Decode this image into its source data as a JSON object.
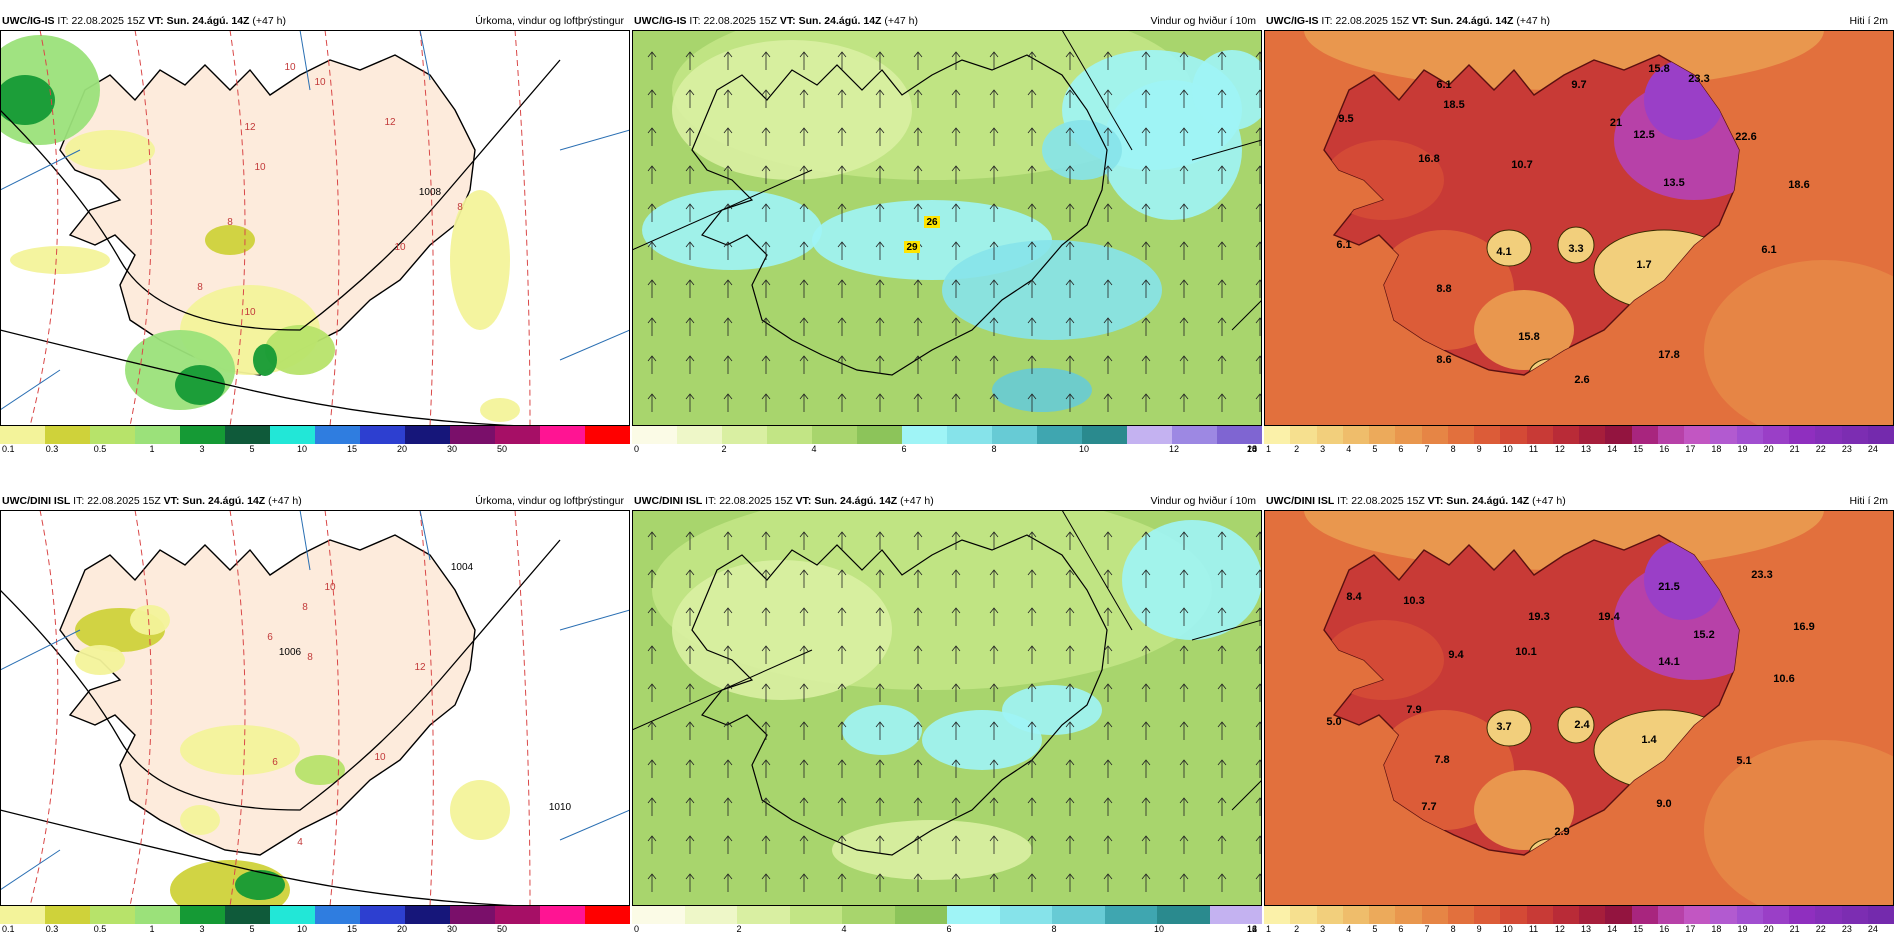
{
  "panels": [
    {
      "id": "p1",
      "model": "UWC/IG-IS",
      "it_label": "IT:",
      "it_value": "22.08.2025 15Z",
      "vt_label": "VT:",
      "vt_value": "Sun. 24.ágú. 14Z",
      "lead": "(+47 h)",
      "field": "Úrkoma, vindur og loftþrýstingur",
      "scale_colors": [
        "#f3f39a",
        "#cfd23a",
        "#b7e36a",
        "#9be17a",
        "#159a35",
        "#0f5a3a",
        "#22e7d7",
        "#2f7de0",
        "#2d3fd0",
        "#16167a",
        "#7a0f6a",
        "#a60f66",
        "#ff1493",
        "#ff0000"
      ],
      "scale_ticks": [
        "0.1",
        "0.3",
        "0.5",
        "1",
        "3",
        "5",
        "10",
        "15",
        "20",
        "30",
        "50"
      ],
      "labels": [
        "10",
        "10",
        "12",
        "12",
        "10",
        "8",
        "8",
        "10",
        "10",
        "8",
        "1008"
      ]
    },
    {
      "id": "p2",
      "model": "UWC/IG-IS",
      "it_label": "IT:",
      "it_value": "22.08.2025 15Z",
      "vt_label": "VT:",
      "vt_value": "Sun. 24.ágú. 14Z",
      "lead": "(+47 h)",
      "field": "Vindur og hviður í 10m",
      "scale_colors": [
        "#fbfbe6",
        "#eef7c8",
        "#d9efa2",
        "#c2e585",
        "#a8d56d",
        "#8cc45a",
        "#9ff4f6",
        "#86e3ea",
        "#67cbd5",
        "#3fa6b0",
        "#2a8a8e",
        "#c4b2f1",
        "#9d88e3",
        "#7f65d2"
      ],
      "scale_ticks": [
        "0",
        "2",
        "4",
        "6",
        "8",
        "10",
        "12",
        "14",
        "16",
        "18",
        "20"
      ],
      "labels": [
        "29",
        "26"
      ]
    },
    {
      "id": "p3",
      "model": "UWC/IG-IS",
      "it_label": "IT:",
      "it_value": "22.08.2025 15Z",
      "vt_label": "VT:",
      "vt_value": "Sun. 24.ágú. 14Z",
      "lead": "(+47 h)",
      "field": "Hiti í 2m",
      "scale_colors": [
        "#fbf1a9",
        "#f6e08f",
        "#f2cf7c",
        "#efbd6b",
        "#ecaa5b",
        "#e9974e",
        "#e68545",
        "#e2703d",
        "#dc5c38",
        "#d44a36",
        "#c83a36",
        "#b92b37",
        "#a61e3b",
        "#93143f",
        "#a8257e",
        "#b741a8",
        "#c256c2",
        "#b25ad0",
        "#a14fd0",
        "#9a3fc7",
        "#8f2fbf",
        "#842fb8",
        "#7c2db2",
        "#742aad"
      ],
      "scale_ticks": [
        "1",
        "2",
        "3",
        "4",
        "5",
        "6",
        "7",
        "8",
        "9",
        "10",
        "11",
        "12",
        "13",
        "14",
        "15",
        "16",
        "17",
        "18",
        "19",
        "20",
        "21",
        "22",
        "23",
        "24"
      ],
      "labels": [
        "15.8",
        "23.3",
        "9.7",
        "6.1",
        "9.5",
        "18.5",
        "21",
        "12.5",
        "22.6",
        "16.8",
        "10.7",
        "13.5",
        "18.6",
        "6.1",
        "4.1",
        "3.3",
        "1.7",
        "6.1",
        "8.8",
        "15.8",
        "8.6",
        "2.6",
        "17.8"
      ]
    },
    {
      "id": "p4",
      "model": "UWC/DINI ISL",
      "it_label": "IT:",
      "it_value": "22.08.2025 15Z",
      "vt_label": "VT:",
      "vt_value": "Sun. 24.ágú. 14Z",
      "lead": "(+47 h)",
      "field": "Úrkoma, vindur og loftþrýstingur",
      "scale_colors": [
        "#f3f39a",
        "#cfd23a",
        "#b7e36a",
        "#9be17a",
        "#159a35",
        "#0f5a3a",
        "#22e7d7",
        "#2f7de0",
        "#2d3fd0",
        "#16167a",
        "#7a0f6a",
        "#a60f66",
        "#ff1493",
        "#ff0000"
      ],
      "scale_ticks": [
        "0.1",
        "0.3",
        "0.5",
        "1",
        "3",
        "5",
        "10",
        "15",
        "20",
        "30",
        "50"
      ],
      "labels": [
        "1004",
        "10",
        "8",
        "6",
        "12",
        "1006",
        "8",
        "10",
        "6",
        "4",
        "1010"
      ]
    },
    {
      "id": "p5",
      "model": "UWC/DINI ISL",
      "it_label": "IT:",
      "it_value": "22.08.2025 15Z",
      "vt_label": "VT:",
      "vt_value": "Sun. 24.ágú. 14Z",
      "lead": "(+47 h)",
      "field": "Vindur og hviður í 10m",
      "scale_colors": [
        "#fbfbe6",
        "#eef7c8",
        "#d9efa2",
        "#c2e585",
        "#a8d56d",
        "#8cc45a",
        "#9ff4f6",
        "#86e3ea",
        "#67cbd5",
        "#3fa6b0",
        "#2a8a8e",
        "#c4b2f1"
      ],
      "scale_ticks": [
        "0",
        "2",
        "4",
        "6",
        "8",
        "10",
        "12",
        "14",
        "16"
      ],
      "labels": []
    },
    {
      "id": "p6",
      "model": "UWC/DINI ISL",
      "it_label": "IT:",
      "it_value": "22.08.2025 15Z",
      "vt_label": "VT:",
      "vt_value": "Sun. 24.ágú. 14Z",
      "lead": "(+47 h)",
      "field": "Hiti í 2m",
      "scale_colors": [
        "#fbf1a9",
        "#f6e08f",
        "#f2cf7c",
        "#efbd6b",
        "#ecaa5b",
        "#e9974e",
        "#e68545",
        "#e2703d",
        "#dc5c38",
        "#d44a36",
        "#c83a36",
        "#b92b37",
        "#a61e3b",
        "#93143f",
        "#a8257e",
        "#b741a8",
        "#c256c2",
        "#b25ad0",
        "#a14fd0",
        "#9a3fc7",
        "#8f2fbf",
        "#842fb8",
        "#7c2db2",
        "#742aad"
      ],
      "scale_ticks": [
        "1",
        "2",
        "3",
        "4",
        "5",
        "6",
        "7",
        "8",
        "9",
        "10",
        "11",
        "12",
        "13",
        "14",
        "15",
        "16",
        "17",
        "18",
        "19",
        "20",
        "21",
        "22",
        "23",
        "24"
      ],
      "labels": [
        "23.3",
        "8.4",
        "10.3",
        "21.5",
        "19.3",
        "19.4",
        "16.9",
        "10.1",
        "9.4",
        "15.2",
        "14.1",
        "10.6",
        "5.0",
        "7.9",
        "3.7",
        "2.4",
        "1.4",
        "5.1",
        "7.8",
        "7.7",
        "9.0",
        "2.9"
      ]
    }
  ]
}
